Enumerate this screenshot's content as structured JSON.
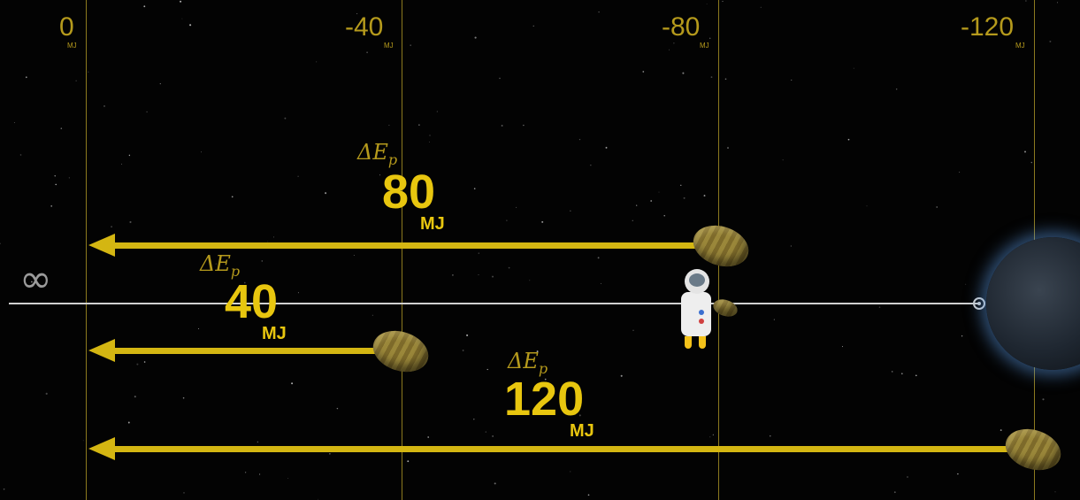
{
  "axis": {
    "ticks": [
      {
        "label": "0",
        "unit": "MJ",
        "value": 0
      },
      {
        "label": "-40",
        "unit": "MJ",
        "value": -40
      },
      {
        "label": "-80",
        "unit": "MJ",
        "value": -80
      },
      {
        "label": "-120",
        "unit": "MJ",
        "value": -120
      }
    ],
    "infinity_symbol": "∞"
  },
  "energy_changes": [
    {
      "delta_symbol": "ΔE",
      "subscript": "p",
      "value": "80",
      "unit": "MJ",
      "start_energy": -80
    },
    {
      "delta_symbol": "ΔE",
      "subscript": "p",
      "value": "40",
      "unit": "MJ",
      "start_energy": -40
    },
    {
      "delta_symbol": "ΔE",
      "subscript": "p",
      "value": "120",
      "unit": "MJ",
      "start_energy": -120
    }
  ],
  "colors": {
    "background": "#030303",
    "gridline": "#8c7a1f",
    "tick_label": "#b59a1c",
    "arrow": "#d4b612",
    "value_text": "#e8c60f",
    "axis_line": "#d0d0d0",
    "planet_glow": "#5a96dc"
  },
  "icons": {
    "seed": "seed-icon",
    "astronaut": "astronaut-icon",
    "planet": "planet-icon",
    "axis_end": "target-dot-icon"
  }
}
